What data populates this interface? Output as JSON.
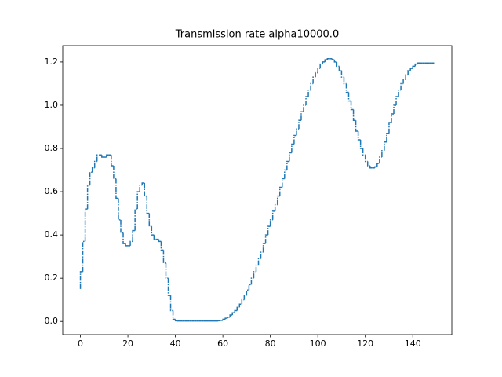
{
  "chart_data": {
    "type": "line",
    "title": "Transmission rate alpha10000.0",
    "drawstyle": "steps-pre",
    "linestyle": "dashdot",
    "x": [
      0,
      1,
      2,
      3,
      4,
      5,
      6,
      7,
      8,
      9,
      10,
      11,
      12,
      13,
      14,
      15,
      16,
      17,
      18,
      19,
      20,
      21,
      22,
      23,
      24,
      25,
      26,
      27,
      28,
      29,
      30,
      31,
      32,
      33,
      34,
      35,
      36,
      37,
      38,
      39,
      40,
      41,
      42,
      43,
      44,
      45,
      46,
      47,
      48,
      49,
      50,
      51,
      52,
      53,
      54,
      55,
      56,
      57,
      58,
      59,
      60,
      61,
      62,
      63,
      64,
      65,
      66,
      67,
      68,
      69,
      70,
      71,
      72,
      73,
      74,
      75,
      76,
      77,
      78,
      79,
      80,
      81,
      82,
      83,
      84,
      85,
      86,
      87,
      88,
      89,
      90,
      91,
      92,
      93,
      94,
      95,
      96,
      97,
      98,
      99,
      100,
      101,
      102,
      103,
      104,
      105,
      106,
      107,
      108,
      109,
      110,
      111,
      112,
      113,
      114,
      115,
      116,
      117,
      118,
      119,
      120,
      121,
      122,
      123,
      124,
      125,
      126,
      127,
      128,
      129,
      130,
      131,
      132,
      133,
      134,
      135,
      136,
      137,
      138,
      139,
      140,
      141,
      142,
      143,
      144,
      145,
      146,
      147,
      148,
      149
    ],
    "series": [
      {
        "color": "#1f77b4",
        "values": [
          0.15,
          0.23,
          0.37,
          0.52,
          0.63,
          0.69,
          0.71,
          0.74,
          0.77,
          0.77,
          0.76,
          0.76,
          0.77,
          0.77,
          0.72,
          0.66,
          0.57,
          0.47,
          0.41,
          0.36,
          0.35,
          0.35,
          0.37,
          0.42,
          0.52,
          0.6,
          0.63,
          0.64,
          0.58,
          0.5,
          0.44,
          0.4,
          0.38,
          0.38,
          0.37,
          0.33,
          0.27,
          0.2,
          0.12,
          0.05,
          0.01,
          0.003,
          0.002,
          0.002,
          0.002,
          0.002,
          0.002,
          0.002,
          0.002,
          0.002,
          0.002,
          0.002,
          0.002,
          0.002,
          0.002,
          0.002,
          0.002,
          0.002,
          0.002,
          0.003,
          0.005,
          0.01,
          0.015,
          0.02,
          0.03,
          0.04,
          0.05,
          0.065,
          0.08,
          0.1,
          0.12,
          0.145,
          0.17,
          0.2,
          0.23,
          0.26,
          0.29,
          0.32,
          0.36,
          0.4,
          0.44,
          0.47,
          0.51,
          0.54,
          0.58,
          0.62,
          0.66,
          0.7,
          0.74,
          0.78,
          0.82,
          0.86,
          0.89,
          0.93,
          0.97,
          1.0,
          1.04,
          1.07,
          1.1,
          1.13,
          1.15,
          1.17,
          1.19,
          1.2,
          1.21,
          1.215,
          1.215,
          1.21,
          1.2,
          1.18,
          1.16,
          1.13,
          1.1,
          1.06,
          1.02,
          0.98,
          0.93,
          0.88,
          0.84,
          0.8,
          0.77,
          0.74,
          0.72,
          0.71,
          0.71,
          0.715,
          0.73,
          0.76,
          0.79,
          0.83,
          0.87,
          0.92,
          0.96,
          1.0,
          1.04,
          1.07,
          1.1,
          1.12,
          1.14,
          1.16,
          1.17,
          1.18,
          1.19,
          1.195,
          1.195,
          1.195,
          1.195,
          1.195,
          1.195,
          1.195
        ]
      }
    ],
    "xlim": [
      -7.45,
      156.45
    ],
    "ylim": [
      -0.061,
      1.276
    ],
    "xticks": [
      0,
      20,
      40,
      60,
      80,
      100,
      120,
      140
    ],
    "yticks": [
      {
        "value": 0,
        "label": "0.0"
      },
      0.2,
      0.4,
      0.6,
      0.8,
      {
        "value": 1,
        "label": "1.0"
      },
      1.2
    ]
  }
}
